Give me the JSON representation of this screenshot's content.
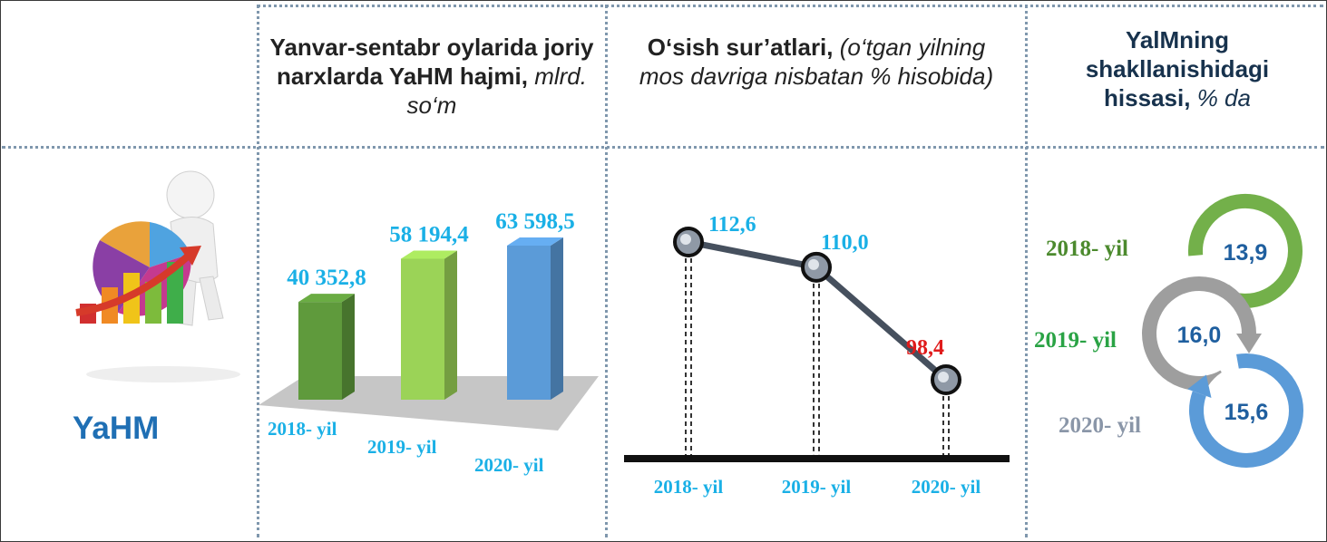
{
  "left_label": "YaHM",
  "headers": {
    "col1_main": "Yanvar-sentabr oylarida joriy narxlarda YaHM hajmi,",
    "col1_unit": "mlrd. so‘m",
    "col2_main": "O‘sish sur’atlari,",
    "col2_unit": "(o‘tgan yilning mos davriga nisbatan % hisobida)",
    "col3_main": "YalMning shakllanishidagi hissasi,",
    "col3_unit": "% da"
  },
  "chart_data": [
    {
      "type": "bar",
      "categories": [
        "2018- yil",
        "2019- yil",
        "2020- yil"
      ],
      "values": [
        40352.8,
        58194.4,
        63598.5
      ],
      "value_labels": [
        "40 352,8",
        "58 194,4",
        "63 598,5"
      ],
      "colors": [
        "#5f9a3c",
        "#9bd357",
        "#5b9bd8"
      ]
    },
    {
      "type": "line",
      "categories": [
        "2018- yil",
        "2019- yil",
        "2020- yil"
      ],
      "values": [
        112.6,
        110.0,
        98.4
      ],
      "value_labels": [
        "112,6",
        "110,0",
        "98,4"
      ],
      "label_colors": [
        "#1ab0e6",
        "#1ab0e6",
        "#e01b1b"
      ]
    },
    {
      "type": "table",
      "categories": [
        "2018- yil",
        "2019- yil",
        "2020- yil"
      ],
      "values": [
        13.9,
        16.0,
        15.6
      ],
      "value_labels": [
        "13,9",
        "16,0",
        "15,6"
      ],
      "label_colors": [
        "#4c8a2e",
        "#2aa345",
        "#8a96a8"
      ],
      "ring_colors": [
        "#73b04a",
        "#9e9e9e",
        "#5b9bd8"
      ]
    }
  ]
}
